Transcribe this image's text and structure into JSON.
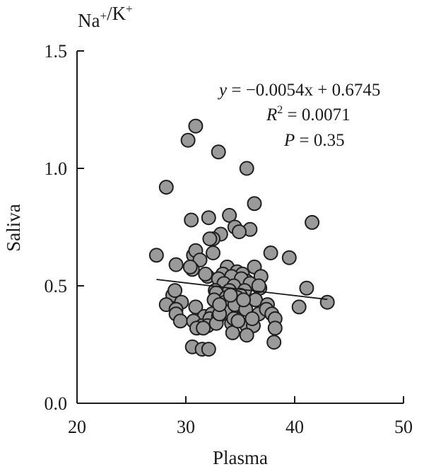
{
  "chart_data": {
    "type": "scatter",
    "title": "Na⁺/K⁺",
    "xlabel": "Plasma",
    "ylabel": "Saliva",
    "xlim": [
      20,
      50
    ],
    "ylim": [
      0.0,
      1.5
    ],
    "x_ticks": [
      "20",
      "30",
      "40",
      "50"
    ],
    "y_ticks": [
      "0.0",
      "0.5",
      "1.0",
      "1.5"
    ],
    "grid": false,
    "annotations": {
      "line1": "y = −0.0054x + 0.6745",
      "line2": "R2 = 0.0071",
      "line3": "P = 0.35"
    },
    "trendline": {
      "slope": -0.0054,
      "intercept": 0.6745,
      "x_range": [
        27.3,
        43.0
      ]
    },
    "series": [
      {
        "points": [
          [
            30.9,
            1.18
          ],
          [
            30.2,
            1.12
          ],
          [
            33.0,
            1.07
          ],
          [
            35.6,
            1.0
          ],
          [
            28.2,
            0.92
          ],
          [
            36.3,
            0.85
          ],
          [
            34.0,
            0.8
          ],
          [
            32.1,
            0.79
          ],
          [
            30.5,
            0.78
          ],
          [
            41.6,
            0.77
          ],
          [
            34.5,
            0.75
          ],
          [
            35.9,
            0.74
          ],
          [
            34.9,
            0.73
          ],
          [
            33.2,
            0.72
          ],
          [
            32.5,
            0.7
          ],
          [
            32.2,
            0.7
          ],
          [
            27.3,
            0.63
          ],
          [
            30.7,
            0.63
          ],
          [
            30.9,
            0.65
          ],
          [
            37.8,
            0.64
          ],
          [
            32.5,
            0.64
          ],
          [
            39.5,
            0.62
          ],
          [
            31.3,
            0.61
          ],
          [
            29.1,
            0.59
          ],
          [
            30.6,
            0.57
          ],
          [
            33.8,
            0.58
          ],
          [
            34.7,
            0.56
          ],
          [
            35.2,
            0.55
          ],
          [
            36.3,
            0.58
          ],
          [
            33.4,
            0.55
          ],
          [
            34.2,
            0.54
          ],
          [
            35.6,
            0.52
          ],
          [
            32.0,
            0.54
          ],
          [
            33.0,
            0.53
          ],
          [
            35.1,
            0.53
          ],
          [
            36.9,
            0.54
          ],
          [
            35.9,
            0.51
          ],
          [
            33.5,
            0.51
          ],
          [
            34.4,
            0.5
          ],
          [
            32.7,
            0.48
          ],
          [
            35.4,
            0.48
          ],
          [
            36.8,
            0.49
          ],
          [
            34.0,
            0.48
          ],
          [
            32.8,
            0.47
          ],
          [
            33.7,
            0.45
          ],
          [
            35.0,
            0.46
          ],
          [
            34.7,
            0.45
          ],
          [
            41.1,
            0.49
          ],
          [
            28.8,
            0.46
          ],
          [
            29.0,
            0.48
          ],
          [
            29.6,
            0.43
          ],
          [
            32.6,
            0.44
          ],
          [
            33.6,
            0.43
          ],
          [
            35.2,
            0.41
          ],
          [
            36.4,
            0.44
          ],
          [
            37.5,
            0.42
          ],
          [
            40.4,
            0.41
          ],
          [
            43.0,
            0.43
          ],
          [
            28.2,
            0.42
          ],
          [
            29.1,
            0.4
          ],
          [
            30.9,
            0.41
          ],
          [
            31.7,
            0.37
          ],
          [
            32.4,
            0.38
          ],
          [
            33.6,
            0.39
          ],
          [
            34.5,
            0.42
          ],
          [
            35.5,
            0.4
          ],
          [
            36.7,
            0.38
          ],
          [
            37.4,
            0.4
          ],
          [
            37.9,
            0.38
          ],
          [
            38.2,
            0.36
          ],
          [
            29.1,
            0.38
          ],
          [
            29.5,
            0.35
          ],
          [
            30.7,
            0.35
          ],
          [
            31.5,
            0.33
          ],
          [
            32.2,
            0.36
          ],
          [
            33.0,
            0.37
          ],
          [
            34.2,
            0.34
          ],
          [
            34.4,
            0.36
          ],
          [
            35.6,
            0.33
          ],
          [
            36.2,
            0.33
          ],
          [
            38.2,
            0.32
          ],
          [
            31.0,
            0.32
          ],
          [
            32.0,
            0.33
          ],
          [
            34.3,
            0.3
          ],
          [
            35.6,
            0.29
          ],
          [
            38.1,
            0.26
          ],
          [
            31.6,
            0.32
          ],
          [
            30.6,
            0.24
          ],
          [
            31.5,
            0.23
          ],
          [
            32.1,
            0.23
          ],
          [
            32.8,
            0.34
          ],
          [
            33.1,
            0.38
          ],
          [
            34.8,
            0.35
          ],
          [
            36.1,
            0.36
          ],
          [
            35.3,
            0.44
          ],
          [
            33.1,
            0.42
          ],
          [
            30.4,
            0.58
          ],
          [
            31.8,
            0.55
          ],
          [
            36.7,
            0.5
          ],
          [
            34.1,
            0.46
          ]
        ]
      }
    ]
  }
}
